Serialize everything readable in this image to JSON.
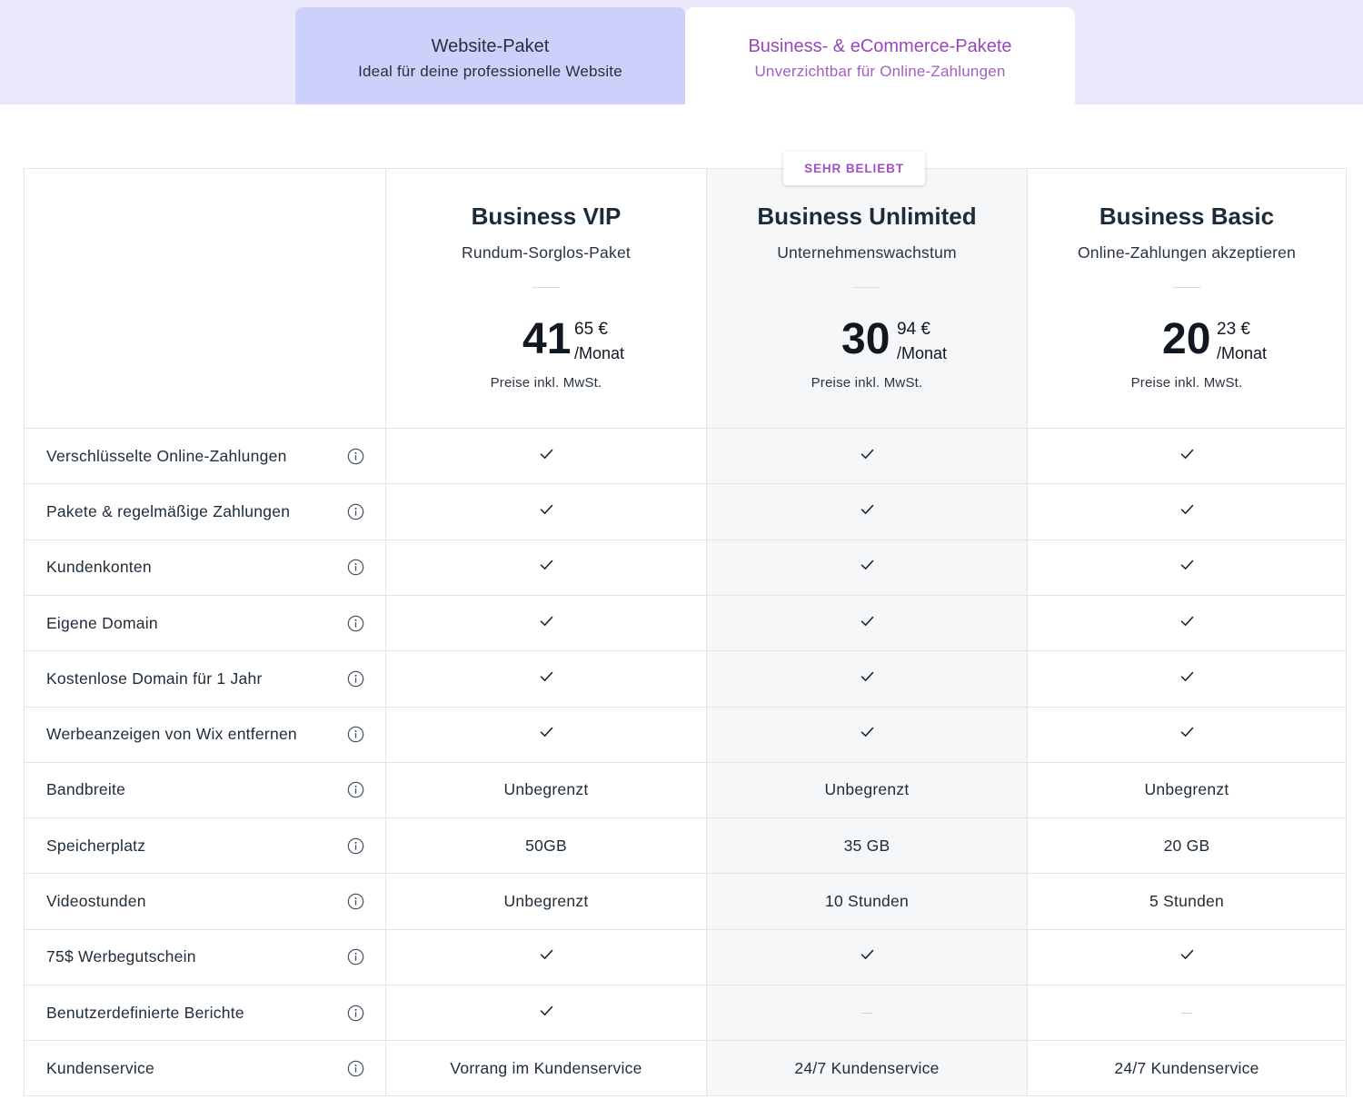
{
  "tabs": [
    {
      "title": "Website-Paket",
      "subtitle": "Ideal für deine professionelle Website"
    },
    {
      "title": "Business- & eCommerce-Pakete",
      "subtitle": "Unverzichtbar für Online-Zahlungen"
    }
  ],
  "badge": "SEHR BELIEBT",
  "colors": {
    "accent": "#9747ba",
    "tab_inactive": "#cdd0fa",
    "band": "#eae8fb",
    "highlight_column": "#f6f7f9"
  },
  "plans": [
    {
      "name": "Business VIP",
      "subtitle": "Rundum-Sorglos-Paket",
      "price_int": "41",
      "price_dec": "65 €",
      "per": "/Monat",
      "note": "Preise inkl. MwSt."
    },
    {
      "name": "Business Unlimited",
      "subtitle": "Unternehmenswachstum",
      "price_int": "30",
      "price_dec": "94 €",
      "per": "/Monat",
      "note": "Preise inkl. MwSt."
    },
    {
      "name": "Business Basic",
      "subtitle": "Online-Zahlungen akzeptieren",
      "price_int": "20",
      "price_dec": "23 €",
      "per": "/Monat",
      "note": "Preise inkl. MwSt."
    }
  ],
  "features": [
    {
      "label": "Verschlüsselte Online-Zahlungen",
      "values": [
        "check",
        "check",
        "check"
      ]
    },
    {
      "label": "Pakete & regelmäßige Zahlungen",
      "values": [
        "check",
        "check",
        "check"
      ]
    },
    {
      "label": "Kundenkonten",
      "values": [
        "check",
        "check",
        "check"
      ]
    },
    {
      "label": "Eigene Domain",
      "values": [
        "check",
        "check",
        "check"
      ]
    },
    {
      "label": "Kostenlose Domain für 1 Jahr",
      "values": [
        "check",
        "check",
        "check"
      ]
    },
    {
      "label": "Werbeanzeigen von Wix entfernen",
      "values": [
        "check",
        "check",
        "check"
      ]
    },
    {
      "label": "Bandbreite",
      "values": [
        "Unbegrenzt",
        "Unbegrenzt",
        "Unbegrenzt"
      ]
    },
    {
      "label": "Speicherplatz",
      "values": [
        "50GB",
        "35 GB",
        "20 GB"
      ]
    },
    {
      "label": "Videostunden",
      "values": [
        "Unbegrenzt",
        "10 Stunden",
        "5 Stunden"
      ]
    },
    {
      "label": "75$ Werbegutschein",
      "values": [
        "check",
        "check",
        "check"
      ]
    },
    {
      "label": "Benutzerdefinierte Berichte",
      "values": [
        "check",
        "none",
        "none"
      ]
    },
    {
      "label": "Kundenservice",
      "values": [
        "Vorrang im Kundenservice",
        "24/7 Kundenservice",
        "24/7 Kundenservice"
      ]
    }
  ],
  "icons": {
    "row_info": "info-icon",
    "included": "check-icon",
    "not_included": "dash-icon"
  }
}
